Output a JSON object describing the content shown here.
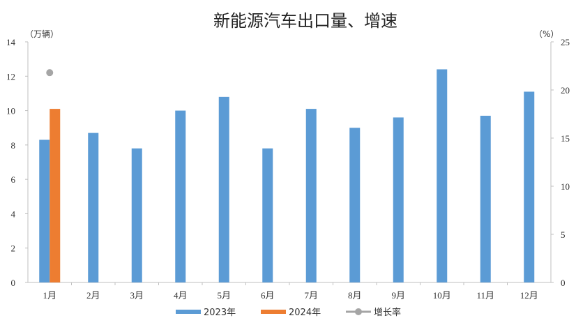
{
  "chart_data": {
    "type": "bar",
    "title": "新能源汽车出口量、增速",
    "y_left_unit": "（万辆）",
    "y_right_unit": "（%）",
    "categories": [
      "1月",
      "2月",
      "3月",
      "4月",
      "5月",
      "6月",
      "7月",
      "8月",
      "9月",
      "10月",
      "11月",
      "12月"
    ],
    "y_left_ticks": [
      "0",
      "2",
      "4",
      "6",
      "8",
      "10",
      "12",
      "14"
    ],
    "y_right_ticks": [
      "0",
      "5",
      "10",
      "15",
      "20",
      "25"
    ],
    "ylim_left": [
      0,
      14
    ],
    "ylim_right": [
      0,
      25
    ],
    "series": [
      {
        "name": "2023年",
        "axis": "left",
        "kind": "bar",
        "color": "#5b9bd5",
        "values": [
          8.3,
          8.7,
          7.8,
          10.0,
          10.8,
          7.8,
          10.1,
          9.0,
          9.6,
          12.4,
          9.7,
          11.1
        ]
      },
      {
        "name": "2024年",
        "axis": "left",
        "kind": "bar",
        "color": "#ed7d31",
        "values": [
          10.1,
          null,
          null,
          null,
          null,
          null,
          null,
          null,
          null,
          null,
          null,
          null
        ]
      },
      {
        "name": "增长率",
        "axis": "right",
        "kind": "line-marker",
        "color": "#a5a5a5",
        "values": [
          21.8,
          null,
          null,
          null,
          null,
          null,
          null,
          null,
          null,
          null,
          null,
          null
        ]
      }
    ],
    "grid": false,
    "legend_position": "bottom"
  }
}
